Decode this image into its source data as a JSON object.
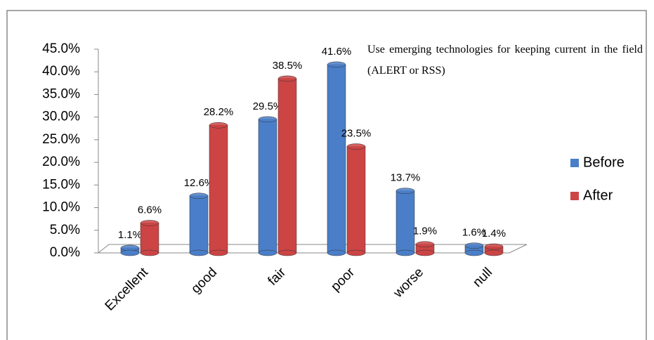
{
  "chart_data": {
    "type": "bar",
    "annotation": "Use emerging technologies for keeping current in the field (ALERT or RSS)",
    "categories": [
      "Excellent",
      "good",
      "fair",
      "poor",
      "worse",
      "null"
    ],
    "series": [
      {
        "name": "Before",
        "color": "#4a7ec8",
        "values": [
          1.1,
          12.6,
          29.5,
          41.6,
          13.7,
          1.6
        ],
        "value_labels": [
          "1.1%",
          "12.6%",
          "29.5%",
          "41.6%",
          "13.7%",
          "1.6%"
        ]
      },
      {
        "name": "After",
        "color": "#cc4444",
        "values": [
          6.6,
          28.2,
          38.5,
          23.5,
          1.9,
          1.4
        ],
        "value_labels": [
          "6.6%",
          "28.2%",
          "38.5%",
          "23.5%",
          "1.9%",
          "1.4%"
        ]
      }
    ],
    "ylim": [
      0,
      45
    ],
    "yticks": [
      {
        "value": 0,
        "label": "0.0%"
      },
      {
        "value": 5,
        "label": "5.0%"
      },
      {
        "value": 10,
        "label": "10.0%"
      },
      {
        "value": 15,
        "label": "15.0%"
      },
      {
        "value": 20,
        "label": "20.0%"
      },
      {
        "value": 25,
        "label": "25.0%"
      },
      {
        "value": 30,
        "label": "30.0%"
      },
      {
        "value": 35,
        "label": "35.0%"
      },
      {
        "value": 40,
        "label": "40.0%"
      },
      {
        "value": 45,
        "label": "45.0%"
      }
    ],
    "legend": "right"
  }
}
